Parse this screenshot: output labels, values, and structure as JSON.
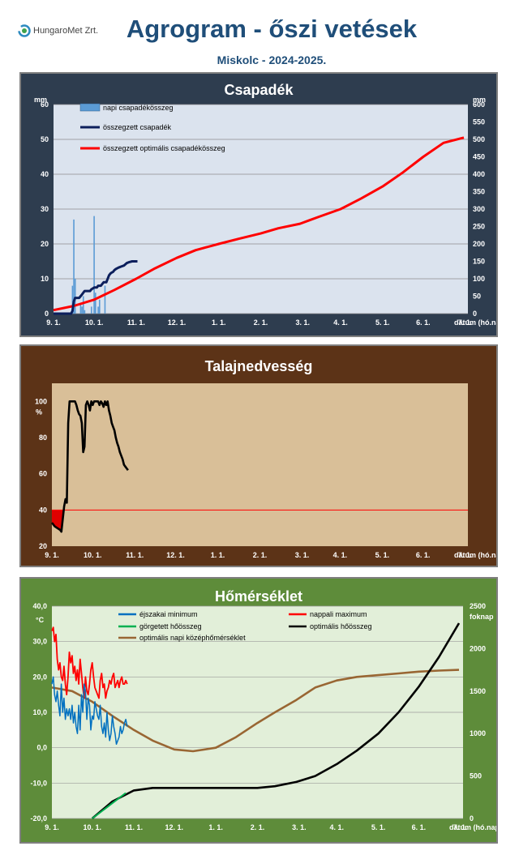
{
  "header": {
    "logo_text": "HungaroMet Zrt.",
    "title": "Agrogram - őszi vetések",
    "subtitle": "Miskolc - 2024-2025."
  },
  "colors": {
    "panel1_bg": "#2e3d4f",
    "plot1_bg": "#dbe3ee",
    "panel2_bg": "#5c3317",
    "plot2_bg": "#d9bf98",
    "panel3_bg": "#5e8c3a",
    "plot3_bg": "#e2efd9",
    "title_text": "#1f4e79"
  },
  "chart_data": [
    {
      "type": "bar+line",
      "title": "Csapadék",
      "ylabel_left": "mm",
      "ylabel_right": "mm",
      "xlabel": "dátum (hó.nap)",
      "ylim_left": [
        0,
        60
      ],
      "ylim_right": [
        0,
        600
      ],
      "yticks_left": [
        "0",
        "10",
        "20",
        "30",
        "40",
        "50",
        "60"
      ],
      "yticks_right": [
        "0",
        "50",
        "100",
        "150",
        "200",
        "250",
        "300",
        "350",
        "400",
        "450",
        "500",
        "550",
        "600"
      ],
      "xticks": [
        "9. 1.",
        "10. 1.",
        "11. 1.",
        "12. 1.",
        "1. 1.",
        "2. 1.",
        "3. 1.",
        "4. 1.",
        "5. 1.",
        "6. 1.",
        "7. 1."
      ],
      "grid": true,
      "legend_position": "top-left",
      "series": [
        {
          "name": "napi csapadékösszeg",
          "type": "bar",
          "color": "#5b9bd5",
          "x": [
            14,
            15,
            16,
            20,
            21,
            22,
            23,
            28,
            30,
            31,
            33,
            34,
            38
          ],
          "values": [
            8,
            27,
            10,
            3,
            2,
            5,
            1,
            2,
            28,
            6,
            2,
            4,
            8
          ]
        },
        {
          "name": "összegzett csapadék",
          "type": "line",
          "color": "#0c1f5c",
          "x": [
            0,
            13,
            14,
            15,
            16,
            19,
            20,
            21,
            22,
            23,
            27,
            28,
            29,
            30,
            31,
            32,
            33,
            34,
            35,
            36,
            37,
            38,
            39,
            40,
            41,
            42,
            43,
            44,
            45,
            46,
            47,
            48,
            50,
            52,
            54,
            56,
            58,
            60,
            62
          ],
          "values": [
            0,
            0,
            8,
            35,
            45,
            45,
            50,
            55,
            60,
            65,
            65,
            70,
            72,
            75,
            75,
            75,
            80,
            80,
            80,
            85,
            90,
            90,
            90,
            100,
            110,
            115,
            118,
            120,
            125,
            128,
            130,
            132,
            135,
            138,
            145,
            148,
            150,
            150,
            150
          ]
        },
        {
          "name": "összegzett optimális csapadékösszeg",
          "type": "line",
          "color": "#ff0000",
          "x": [
            0,
            15,
            30,
            45,
            61,
            75,
            91,
            105,
            122,
            137,
            153,
            166,
            182,
            196,
            212,
            227,
            243,
            258,
            273,
            288,
            303
          ],
          "values": [
            10,
            22,
            40,
            68,
            100,
            130,
            160,
            182,
            200,
            215,
            230,
            245,
            258,
            278,
            300,
            330,
            365,
            405,
            450,
            490,
            505
          ]
        }
      ]
    },
    {
      "type": "line",
      "title": "Talajnedvesség",
      "ylabel": "%",
      "xlabel": "dátum (hó.nap)",
      "ylim": [
        20,
        110
      ],
      "yticks": [
        "20",
        "40",
        "60",
        "80",
        "100"
      ],
      "xticks": [
        "9. 1.",
        "10. 1.",
        "11. 1.",
        "12. 1.",
        "1. 1.",
        "2. 1.",
        "3. 1.",
        "4. 1.",
        "5. 1.",
        "6. 1.",
        "7. 1."
      ],
      "grid": false,
      "threshold": 40,
      "series": [
        {
          "name": "talajnedvesség",
          "color": "#000000",
          "x": [
            0,
            2,
            4,
            6,
            7,
            8,
            9,
            10,
            11,
            12,
            13,
            14,
            15,
            16,
            17,
            18,
            19,
            20,
            21,
            22,
            23,
            24,
            25,
            26,
            27,
            28,
            29,
            30,
            31,
            32,
            33,
            34,
            35,
            36,
            37,
            38,
            39,
            40,
            41,
            42,
            43,
            44,
            45,
            46,
            47,
            48,
            49,
            50,
            51,
            52,
            53,
            54,
            55,
            56
          ],
          "values": [
            33,
            31,
            30,
            29,
            28,
            35,
            42,
            46,
            44,
            88,
            100,
            100,
            100,
            100,
            100,
            98,
            95,
            93,
            92,
            88,
            72,
            75,
            98,
            100,
            98,
            95,
            100,
            98,
            100,
            100,
            100,
            100,
            98,
            100,
            99,
            97,
            100,
            98,
            100,
            95,
            92,
            88,
            86,
            84,
            80,
            77,
            75,
            72,
            70,
            68,
            65,
            64,
            63,
            62
          ]
        }
      ]
    },
    {
      "type": "line",
      "title": "Hőmérséklet",
      "ylabel_left": "°C",
      "ylabel_right": "foknap",
      "xlabel": "dátum (hó.nap)",
      "ylim_left": [
        -20,
        40
      ],
      "ylim_right": [
        0,
        2500
      ],
      "yticks_left": [
        "-20,0",
        "-10,0",
        "0,0",
        "10,0",
        "20,0",
        "30,0",
        "40,0"
      ],
      "yticks_right": [
        "0",
        "500",
        "1000",
        "1500",
        "2000",
        "2500"
      ],
      "xticks": [
        "9. 1.",
        "10. 1.",
        "11. 1.",
        "12. 1.",
        "1. 1.",
        "2. 1.",
        "3. 1.",
        "4. 1.",
        "5. 1.",
        "6. 1.",
        "7. 1."
      ],
      "grid": true,
      "legend_position": "top",
      "series": [
        {
          "name": "éjszakai minimum",
          "color": "#0070c0",
          "x": [
            0,
            1,
            2,
            3,
            4,
            5,
            6,
            7,
            8,
            9,
            10,
            11,
            12,
            13,
            14,
            15,
            16,
            17,
            18,
            19,
            20,
            21,
            22,
            23,
            24,
            25,
            26,
            27,
            28,
            29,
            30,
            31,
            32,
            33,
            34,
            35,
            36,
            37,
            38,
            39,
            40,
            41,
            42,
            43,
            44,
            45,
            46,
            47,
            48,
            49,
            50,
            51,
            52,
            53,
            54,
            55,
            56
          ],
          "values": [
            18,
            20,
            15,
            13,
            16,
            12,
            9,
            18,
            10,
            14,
            8,
            11,
            9,
            11,
            8,
            12,
            7,
            10,
            6,
            4,
            12,
            5,
            15,
            10,
            18,
            16,
            8,
            14,
            12,
            5,
            9,
            8,
            13,
            11,
            9,
            8,
            12,
            6,
            4,
            7,
            3,
            10,
            5,
            2,
            4,
            9,
            6,
            4,
            1,
            2,
            3,
            6,
            4,
            5,
            7,
            8,
            6
          ]
        },
        {
          "name": "nappali maximum",
          "color": "#ff0000",
          "x": [
            0,
            1,
            2,
            3,
            4,
            5,
            6,
            7,
            8,
            9,
            10,
            11,
            12,
            13,
            14,
            15,
            16,
            17,
            18,
            19,
            20,
            21,
            22,
            23,
            24,
            25,
            26,
            27,
            28,
            29,
            30,
            31,
            32,
            33,
            34,
            35,
            36,
            37,
            38,
            39,
            40,
            41,
            42,
            43,
            44,
            45,
            46,
            47,
            48,
            49,
            50,
            51,
            52,
            53,
            54,
            55,
            56
          ],
          "values": [
            33,
            34,
            30,
            32,
            25,
            22,
            24,
            20,
            19,
            23,
            18,
            15,
            20,
            27,
            24,
            26,
            21,
            23,
            19,
            22,
            18,
            25,
            21,
            17,
            14,
            20,
            16,
            15,
            18,
            22,
            24,
            20,
            17,
            16,
            15,
            14,
            19,
            21,
            17,
            18,
            14,
            16,
            17,
            19,
            18,
            20,
            21,
            17,
            18,
            19,
            17,
            19,
            20,
            18,
            18,
            19,
            18
          ]
        },
        {
          "name": "görgetett hőösszeg",
          "color": "#00b050",
          "x": [
            30,
            35,
            40,
            45,
            50,
            55
          ],
          "values": [
            0,
            60,
            120,
            180,
            240,
            300
          ]
        },
        {
          "name": "optimális hőösszeg",
          "color": "#000000",
          "x": [
            30,
            45,
            61,
            75,
            91,
            105,
            122,
            137,
            153,
            166,
            182,
            196,
            212,
            227,
            243,
            258,
            273,
            288,
            303
          ],
          "values": [
            0,
            200,
            330,
            360,
            360,
            360,
            360,
            360,
            360,
            380,
            430,
            500,
            640,
            800,
            1000,
            1250,
            1550,
            1900,
            2300
          ]
        },
        {
          "name": "optimális napi középhőmérséklet",
          "color": "#996633",
          "x": [
            0,
            15,
            30,
            45,
            61,
            75,
            91,
            105,
            122,
            137,
            153,
            166,
            182,
            196,
            212,
            227,
            243,
            258,
            273,
            288,
            303
          ],
          "values": [
            17,
            16,
            13,
            9,
            5,
            2,
            -0.5,
            -1,
            0,
            3,
            7,
            10,
            13.5,
            17,
            19,
            20,
            20.5,
            21,
            21.5,
            21.8,
            22
          ]
        }
      ]
    }
  ]
}
